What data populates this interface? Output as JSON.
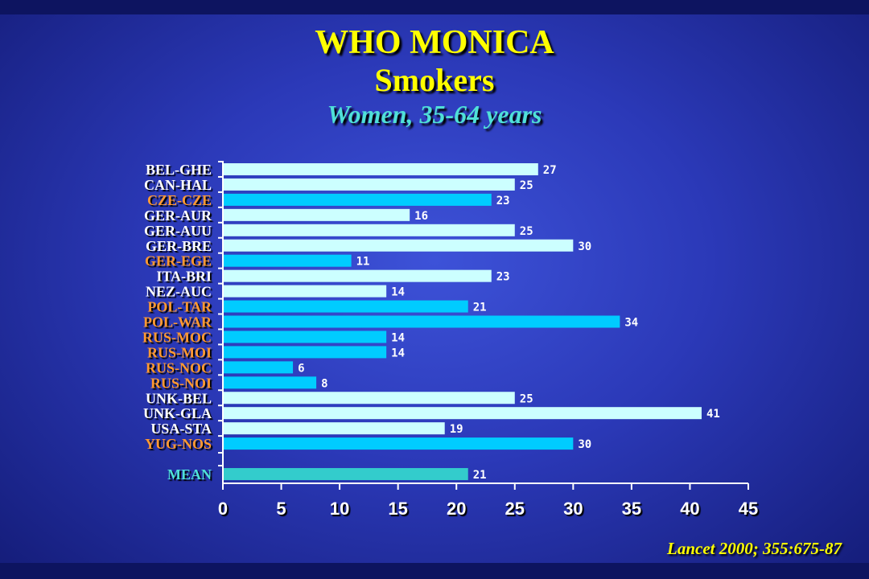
{
  "colors": {
    "background": "#2b39b8",
    "title": "#ffff00",
    "subtitle2": "#4fe0d8",
    "label_white": "#ffffff",
    "label_orange": "#ff9933",
    "label_cyan": "#4fe0d8",
    "bar_light": "#ccffff",
    "bar_blue": "#00ccff",
    "bar_mean": "#33cccc"
  },
  "header": {
    "title": "WHO MONICA",
    "subtitle": "Smokers",
    "subtitle2": "Women, 35-64 years"
  },
  "source": "Lancet 2000; 355:675-87",
  "chart_data": {
    "type": "bar",
    "orientation": "horizontal",
    "categories": [
      "BEL-GHE",
      "CAN-HAL",
      "CZE-CZE",
      "GER-AUR",
      "GER-AUU",
      "GER-BRE",
      "GER-EGE",
      "ITA-BRI",
      "NEZ-AUC",
      "POL-TAR",
      "POL-WAR",
      "RUS-MOC",
      "RUS-MOI",
      "RUS-NOC",
      "RUS-NOI",
      "UNK-BEL",
      "UNK-GLA",
      "USA-STA",
      "YUG-NOS",
      "MEAN"
    ],
    "values": [
      27,
      25,
      23,
      16,
      25,
      30,
      11,
      23,
      14,
      21,
      34,
      14,
      14,
      6,
      8,
      25,
      41,
      19,
      30,
      21
    ],
    "groups": [
      "light",
      "light",
      "blue",
      "light",
      "light",
      "light",
      "blue",
      "light",
      "light",
      "blue",
      "blue",
      "blue",
      "blue",
      "blue",
      "blue",
      "light",
      "light",
      "light",
      "blue",
      "mean"
    ],
    "xlim": [
      0,
      45
    ],
    "xticks": [
      0,
      5,
      10,
      15,
      20,
      25,
      30,
      35,
      40,
      45
    ],
    "grid": false,
    "legend": "none"
  }
}
